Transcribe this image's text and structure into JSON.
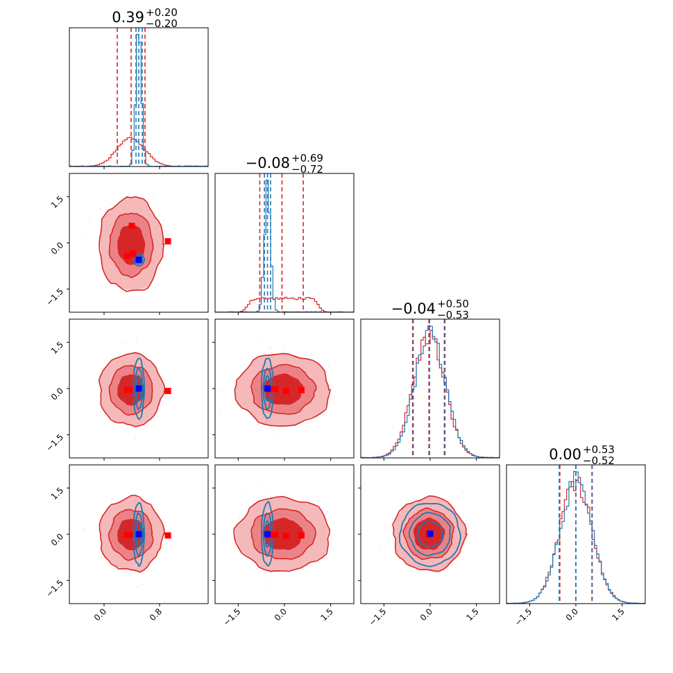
{
  "chart_data": {
    "type": "corner",
    "n_params": 4,
    "colors": {
      "red": "#d62728",
      "blue": "#1f77b4",
      "marker_red": "#ff0000",
      "marker_blue": "#0000ff"
    },
    "ranges": [
      [
        -0.5,
        1.5
      ],
      [
        -2.25,
        2.25
      ],
      [
        -2.25,
        2.25
      ],
      [
        -2.25,
        2.25
      ]
    ],
    "ticks": [
      {
        "values": [
          0.0,
          0.8
        ],
        "labels": [
          "0.0",
          "0.8"
        ]
      },
      {
        "values": [
          -1.5,
          0.0,
          1.5
        ],
        "labels": [
          "−1.5",
          "0.0",
          "1.5"
        ]
      },
      {
        "values": [
          -1.5,
          0.0,
          1.5
        ],
        "labels": [
          "−1.5",
          "0.0",
          "1.5"
        ]
      },
      {
        "values": [
          -1.5,
          0.0,
          1.5
        ],
        "labels": [
          "−1.5",
          "0.0",
          "1.5"
        ]
      }
    ],
    "titles": [
      {
        "median": "0.39",
        "plus": "+0.20",
        "minus": "−0.20"
      },
      {
        "median": "−0.08",
        "plus": "+0.69",
        "minus": "−0.72"
      },
      {
        "median": "−0.04",
        "plus": "+0.50",
        "minus": "−0.53"
      },
      {
        "median": "0.00",
        "plus": "+0.53",
        "minus": "−0.52"
      }
    ],
    "series": [
      {
        "color": "red",
        "distributions": [
          {
            "mean": 0.39,
            "sd": 0.2
          },
          {
            "type": "uniform",
            "lo": -1.2,
            "hi": 1.1,
            "soft": 0.22
          },
          {
            "mean": -0.04,
            "sd": 0.51
          },
          {
            "mean": 0.0,
            "sd": 0.52
          }
        ],
        "quantiles": [
          [
            0.19,
            0.39,
            0.59
          ],
          [
            -0.8,
            -0.08,
            0.61
          ],
          [
            -0.57,
            -0.04,
            0.46
          ],
          [
            -0.52,
            0.0,
            0.53
          ]
        ]
      },
      {
        "color": "blue",
        "distributions": [
          {
            "mean": 0.5,
            "sd": 0.04
          },
          {
            "mean": -0.55,
            "sd": 0.1
          },
          {
            "mean": 0.0,
            "sd": 0.5
          },
          {
            "mean": 0.0,
            "sd": 0.52
          }
        ],
        "quantiles": [
          [
            0.46,
            0.5,
            0.55
          ],
          [
            -0.65,
            -0.55,
            -0.45
          ],
          [
            -0.55,
            -0.02,
            0.48
          ],
          [
            -0.54,
            0.0,
            0.52
          ]
        ]
      }
    ],
    "markers": [
      {
        "color": "red",
        "points": [
          [
            0.4,
            0.55
          ],
          [
            0.42,
            -0.35
          ],
          [
            0.33,
            -0.42
          ],
          [
            0.92,
            0.05
          ],
          [
            0.33,
            -0.05
          ],
          [
            0.37,
            -0.05
          ],
          [
            0.92,
            -0.08
          ],
          [
            -0.45,
            -0.04
          ],
          [
            -0.3,
            -0.05
          ],
          [
            0.05,
            -0.08
          ],
          [
            0.55,
            -0.05
          ],
          [
            -0.05,
            -0.02
          ]
        ]
      },
      {
        "color": "blue",
        "points": [
          [
            0.5,
            -0.55
          ],
          [
            0.5,
            0.0
          ],
          [
            -0.55,
            0.0
          ],
          [
            0.0,
            0.02
          ]
        ]
      }
    ]
  }
}
